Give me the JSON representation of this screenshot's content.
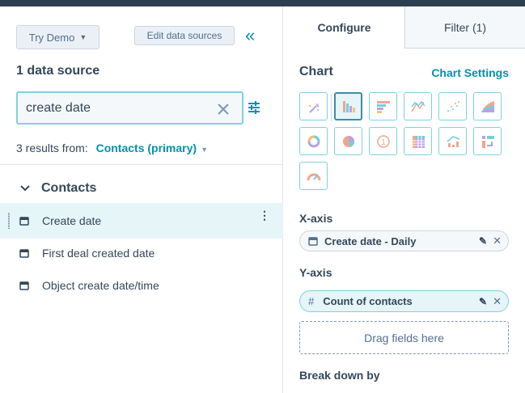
{
  "left": {
    "try_demo": "Try Demo",
    "edit_sources": "Edit data sources",
    "source_count": "1 data source",
    "search_value": "create date",
    "results_prefix": "3 results from:",
    "results_source": "Contacts (primary)",
    "group": "Contacts",
    "fields": [
      "Create date",
      "First deal created date",
      "Object create date/time"
    ]
  },
  "tabs": {
    "configure": "Configure",
    "filter": "Filter (1)"
  },
  "right": {
    "chart_title": "Chart",
    "chart_settings": "Chart Settings",
    "chart_types": [
      "magic-wand",
      "vertical-bar",
      "horizontal-bar",
      "line",
      "scatter",
      "area",
      "donut",
      "pie",
      "single-value",
      "pivot-table",
      "combo",
      "sankey",
      "gauge"
    ],
    "selected_chart": "vertical-bar",
    "x_axis_label": "X-axis",
    "x_field": "Create date - Daily",
    "y_axis_label": "Y-axis",
    "y_field": "Count of contacts",
    "drag_here": "Drag fields here",
    "breakdown_label": "Break down by"
  },
  "colors": {
    "accent": "#0091ae",
    "border": "#7fd1de",
    "highlight": "#e5f5f8"
  }
}
